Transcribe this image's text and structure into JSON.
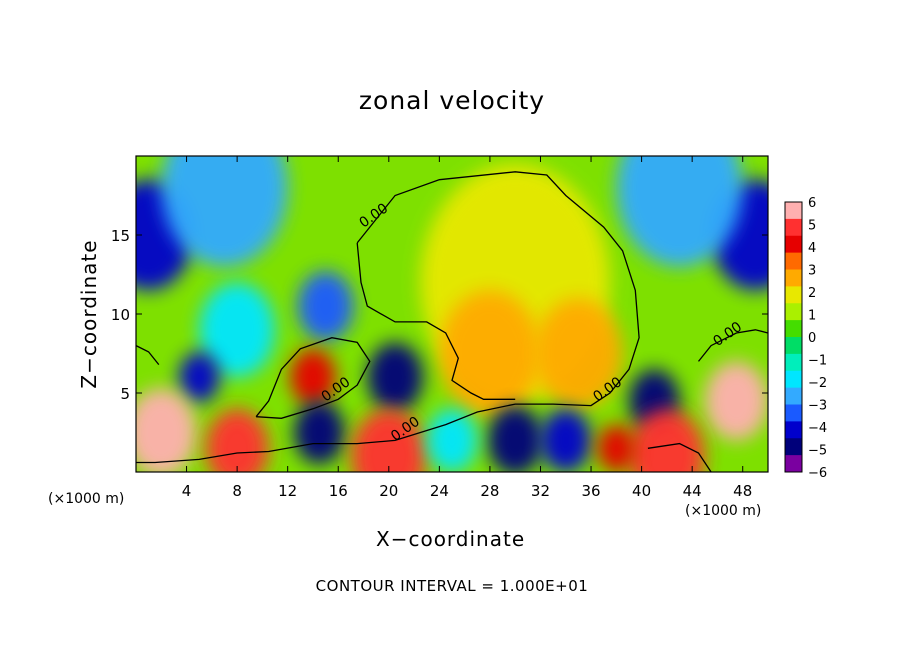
{
  "chart_data": {
    "type": "heatmap",
    "title": "zonal velocity",
    "xlabel": "X−coordinate",
    "ylabel": "Z−coordinate",
    "x_unit_label": "(×1000 m)",
    "x_unit_label_right": "(×1000 m)",
    "footer": "CONTOUR INTERVAL = 1.000E+01",
    "xlim": [
      0,
      50
    ],
    "ylim": [
      0,
      20
    ],
    "x_ticks": [
      4,
      8,
      12,
      16,
      20,
      24,
      28,
      32,
      36,
      40,
      44,
      48
    ],
    "y_ticks": [
      5,
      10,
      15
    ],
    "grid": false,
    "colorbar": {
      "range": [
        -6,
        6
      ],
      "labels": [
        "6",
        "5",
        "4",
        "3",
        "2",
        "1",
        "0",
        "−1",
        "−2",
        "−3",
        "−4",
        "−5",
        "−6"
      ],
      "colors": [
        "#ffb0b0",
        "#ff3030",
        "#e60000",
        "#ff6a00",
        "#ffaa00",
        "#e8e800",
        "#aaf000",
        "#44dd00",
        "#00dd66",
        "#00eebb",
        "#00e6ff",
        "#33aaff",
        "#1a5aff",
        "#0000cc",
        "#00007a",
        "#7a00a0"
      ]
    },
    "contour_labels": [
      {
        "text": "0.00",
        "x": 19.0,
        "y": 16.0
      },
      {
        "text": "0.00",
        "x": 16.0,
        "y": 5.0
      },
      {
        "text": "0.00",
        "x": 21.5,
        "y": 2.5
      },
      {
        "text": "0.00",
        "x": 37.5,
        "y": 5.0
      },
      {
        "text": "0.00",
        "x": 47.0,
        "y": 8.5
      }
    ],
    "blobs": [
      {
        "x": 1.0,
        "y": 15.0,
        "r": 3.5,
        "v": -4.3
      },
      {
        "x": 49.0,
        "y": 15.0,
        "r": 3.5,
        "v": -4.3
      },
      {
        "x": 7.0,
        "y": 18.0,
        "r": 5.0,
        "v": -2.5
      },
      {
        "x": 43.0,
        "y": 18.0,
        "r": 5.0,
        "v": -2.5
      },
      {
        "x": 30.0,
        "y": 12.0,
        "r": 7.5,
        "v": 1.8
      },
      {
        "x": 28.0,
        "y": 7.5,
        "r": 4.0,
        "v": 2.6
      },
      {
        "x": 35.0,
        "y": 7.5,
        "r": 3.5,
        "v": 2.6
      },
      {
        "x": 15.0,
        "y": 10.5,
        "r": 2.2,
        "v": -3.0
      },
      {
        "x": 8.0,
        "y": 9.0,
        "r": 3.0,
        "v": -2.2
      },
      {
        "x": 5.0,
        "y": 6.0,
        "r": 1.6,
        "v": -4.2
      },
      {
        "x": 14.0,
        "y": 6.0,
        "r": 1.8,
        "v": 4.0
      },
      {
        "x": 20.5,
        "y": 6.0,
        "r": 2.2,
        "v": -5.0
      },
      {
        "x": 14.5,
        "y": 2.5,
        "r": 2.0,
        "v": -4.5
      },
      {
        "x": 30.0,
        "y": 2.0,
        "r": 2.2,
        "v": -5.0
      },
      {
        "x": 34.0,
        "y": 2.0,
        "r": 2.0,
        "v": -4.2
      },
      {
        "x": 41.0,
        "y": 4.5,
        "r": 2.0,
        "v": -5.0
      },
      {
        "x": 2.0,
        "y": 2.5,
        "r": 2.8,
        "v": 5.8
      },
      {
        "x": 8.0,
        "y": 1.5,
        "r": 2.5,
        "v": 4.6
      },
      {
        "x": 20.0,
        "y": 1.0,
        "r": 3.0,
        "v": 5.0
      },
      {
        "x": 47.5,
        "y": 4.5,
        "r": 2.5,
        "v": 5.8
      },
      {
        "x": 42.0,
        "y": 1.0,
        "r": 3.0,
        "v": 5.0
      },
      {
        "x": 38.0,
        "y": 1.5,
        "r": 1.5,
        "v": 4.0
      },
      {
        "x": 25.0,
        "y": 2.0,
        "r": 2.0,
        "v": -1.5
      }
    ],
    "contour_zero": [
      [
        [
          17.5,
          14.5
        ],
        [
          18.5,
          15.5
        ],
        [
          20.5,
          17.5
        ],
        [
          24.0,
          18.5
        ],
        [
          30.0,
          19.0
        ],
        [
          32.5,
          18.8
        ],
        [
          34.0,
          17.5
        ],
        [
          37.0,
          15.5
        ],
        [
          38.5,
          14.0
        ],
        [
          39.5,
          11.5
        ],
        [
          39.8,
          8.5
        ],
        [
          39.0,
          6.5
        ],
        [
          37.5,
          5.0
        ],
        [
          36.0,
          4.2
        ],
        [
          33.0,
          4.3
        ],
        [
          30.0,
          4.3
        ],
        [
          27.0,
          3.8
        ],
        [
          24.5,
          3.0
        ],
        [
          22.5,
          2.5
        ],
        [
          20.5,
          2.0
        ],
        [
          17.5,
          1.8
        ],
        [
          14.0,
          1.8
        ],
        [
          10.5,
          1.3
        ],
        [
          8.0,
          1.2
        ],
        [
          5.0,
          0.8
        ],
        [
          1.5,
          0.6
        ],
        [
          0.0,
          0.6
        ]
      ],
      [
        [
          17.5,
          14.5
        ],
        [
          17.8,
          12.0
        ],
        [
          18.3,
          10.5
        ],
        [
          20.5,
          9.5
        ],
        [
          23.0,
          9.5
        ],
        [
          24.5,
          8.8
        ],
        [
          25.5,
          7.2
        ],
        [
          25.0,
          5.8
        ],
        [
          26.5,
          5.0
        ],
        [
          27.5,
          4.6
        ],
        [
          30.0,
          4.6
        ]
      ],
      [
        [
          9.5,
          3.5
        ],
        [
          10.5,
          4.5
        ],
        [
          11.5,
          6.5
        ],
        [
          13.0,
          7.8
        ],
        [
          15.5,
          8.5
        ],
        [
          17.5,
          8.2
        ],
        [
          18.5,
          7.0
        ],
        [
          17.5,
          5.5
        ],
        [
          16.0,
          4.6
        ],
        [
          14.0,
          4.0
        ],
        [
          11.5,
          3.4
        ],
        [
          9.5,
          3.5
        ]
      ],
      [
        [
          44.5,
          7.0
        ],
        [
          45.5,
          8.0
        ],
        [
          47.5,
          8.8
        ],
        [
          49.0,
          9.0
        ],
        [
          50.0,
          8.8
        ]
      ],
      [
        [
          0.0,
          8.0
        ],
        [
          1.0,
          7.6
        ],
        [
          1.8,
          6.8
        ]
      ],
      [
        [
          40.5,
          1.5
        ],
        [
          43.0,
          1.8
        ],
        [
          44.5,
          1.2
        ],
        [
          45.5,
          0.0
        ]
      ]
    ]
  }
}
